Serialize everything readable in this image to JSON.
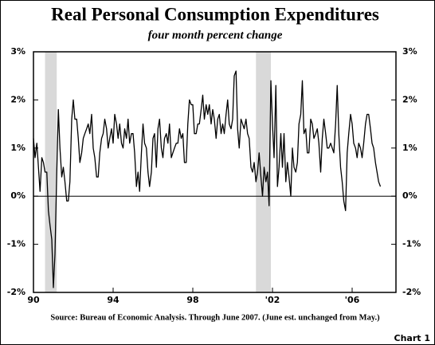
{
  "chart_data": {
    "type": "line",
    "title": "Real Personal Consumption Expenditures",
    "subtitle": "four month percent change",
    "source": "Source: Bureau of Economic Analysis. Through June 2007. (June est. unchanged from May.)",
    "chart_label": "Chart 1",
    "xlim": [
      1990,
      2008.2
    ],
    "xticks": [
      {
        "value": 1990,
        "label": "90"
      },
      {
        "value": 1994,
        "label": "94"
      },
      {
        "value": 1998,
        "label": "98"
      },
      {
        "value": 2002,
        "label": "'02"
      },
      {
        "value": 2006,
        "label": "'06"
      }
    ],
    "ylim": [
      -2,
      3
    ],
    "yticks": [
      {
        "value": -2,
        "label": "-2%"
      },
      {
        "value": -1,
        "label": "-1%"
      },
      {
        "value": 0,
        "label": "0%"
      },
      {
        "value": 1,
        "label": "1%"
      },
      {
        "value": 2,
        "label": "2%"
      },
      {
        "value": 3,
        "label": "3%"
      }
    ],
    "recessions": [
      [
        1990.58,
        1991.17
      ],
      [
        2001.17,
        2001.92
      ]
    ],
    "recession_color": "#d9d9d9",
    "series": [
      {
        "color": "#000000",
        "x": [
          1990,
          1990.08,
          1990.17,
          1990.25,
          1990.33,
          1990.42,
          1990.5,
          1990.58,
          1990.67,
          1990.75,
          1990.83,
          1990.92,
          1991,
          1991.08,
          1991.17,
          1991.25,
          1991.33,
          1991.42,
          1991.5,
          1991.58,
          1991.67,
          1991.75,
          1991.83,
          1991.92,
          1992,
          1992.08,
          1992.17,
          1992.25,
          1992.33,
          1992.42,
          1992.5,
          1992.58,
          1992.67,
          1992.75,
          1992.83,
          1992.92,
          1993,
          1993.08,
          1993.17,
          1993.25,
          1993.33,
          1993.42,
          1993.5,
          1993.58,
          1993.67,
          1993.75,
          1993.83,
          1993.92,
          1994,
          1994.08,
          1994.17,
          1994.25,
          1994.33,
          1994.42,
          1994.5,
          1994.58,
          1994.67,
          1994.75,
          1994.83,
          1994.92,
          1995,
          1995.08,
          1995.17,
          1995.25,
          1995.33,
          1995.42,
          1995.5,
          1995.58,
          1995.67,
          1995.75,
          1995.83,
          1995.92,
          1996,
          1996.08,
          1996.17,
          1996.25,
          1996.33,
          1996.42,
          1996.5,
          1996.58,
          1996.67,
          1996.75,
          1996.83,
          1996.92,
          1997,
          1997.08,
          1997.17,
          1997.25,
          1997.33,
          1997.42,
          1997.5,
          1997.58,
          1997.67,
          1997.75,
          1997.83,
          1997.92,
          1998,
          1998.08,
          1998.17,
          1998.25,
          1998.33,
          1998.42,
          1998.5,
          1998.58,
          1998.67,
          1998.75,
          1998.83,
          1998.92,
          1999,
          1999.08,
          1999.17,
          1999.25,
          1999.33,
          1999.42,
          1999.5,
          1999.58,
          1999.67,
          1999.75,
          1999.83,
          1999.92,
          2000,
          2000.08,
          2000.17,
          2000.25,
          2000.33,
          2000.42,
          2000.5,
          2000.58,
          2000.67,
          2000.75,
          2000.83,
          2000.92,
          2001,
          2001.08,
          2001.17,
          2001.25,
          2001.33,
          2001.42,
          2001.5,
          2001.58,
          2001.67,
          2001.75,
          2001.83,
          2001.92,
          2002,
          2002.08,
          2002.17,
          2002.25,
          2002.33,
          2002.42,
          2002.5,
          2002.58,
          2002.67,
          2002.75,
          2002.83,
          2002.92,
          2003,
          2003.08,
          2003.17,
          2003.25,
          2003.33,
          2003.42,
          2003.5,
          2003.58,
          2003.67,
          2003.75,
          2003.83,
          2003.92,
          2004,
          2004.08,
          2004.17,
          2004.25,
          2004.33,
          2004.42,
          2004.5,
          2004.58,
          2004.67,
          2004.75,
          2004.83,
          2004.92,
          2005,
          2005.08,
          2005.17,
          2005.25,
          2005.33,
          2005.42,
          2005.5,
          2005.58,
          2005.67,
          2005.75,
          2005.83,
          2005.92,
          2006,
          2006.08,
          2006.17,
          2006.25,
          2006.33,
          2006.42,
          2006.5,
          2006.58,
          2006.67,
          2006.75,
          2006.83,
          2006.92,
          2007,
          2007.08,
          2007.17,
          2007.25,
          2007.33,
          2007.42
        ],
        "values": [
          1.2,
          0.8,
          1.1,
          0.6,
          0.1,
          0.8,
          0.7,
          0.5,
          0.5,
          -0.3,
          -0.6,
          -0.9,
          -1.9,
          -1.2,
          0.5,
          1.8,
          1.0,
          0.4,
          0.6,
          0.3,
          -0.1,
          -0.1,
          0.3,
          1.6,
          2.0,
          1.6,
          1.6,
          1.2,
          0.7,
          0.9,
          1.2,
          1.3,
          1.4,
          1.5,
          1.3,
          1.7,
          1.0,
          0.8,
          0.4,
          0.4,
          0.9,
          1.2,
          1.3,
          1.6,
          1.4,
          1.0,
          1.2,
          1.4,
          1.1,
          1.7,
          1.5,
          1.2,
          1.5,
          1.1,
          1.0,
          1.4,
          1.2,
          1.6,
          1.1,
          1.3,
          1.3,
          0.9,
          0.2,
          0.5,
          0.1,
          0.9,
          1.5,
          1.1,
          1.0,
          0.5,
          0.2,
          0.5,
          1.2,
          1.3,
          0.6,
          1.4,
          1.6,
          1.0,
          0.8,
          1.2,
          1.3,
          1.1,
          1.5,
          0.8,
          0.9,
          1.0,
          1.1,
          1.1,
          1.4,
          1.2,
          1.3,
          0.7,
          0.7,
          1.5,
          2.0,
          1.9,
          1.9,
          1.3,
          1.3,
          1.5,
          1.5,
          1.8,
          2.1,
          1.6,
          1.9,
          1.7,
          1.9,
          1.5,
          1.8,
          1.6,
          1.2,
          1.6,
          1.7,
          1.3,
          1.5,
          1.3,
          1.7,
          2.0,
          1.5,
          1.4,
          1.6,
          2.5,
          2.6,
          1.4,
          1.0,
          1.6,
          1.5,
          1.4,
          1.6,
          1.3,
          1.2,
          0.6,
          0.5,
          0.7,
          0.3,
          0.5,
          0.9,
          0.4,
          0.0,
          0.6,
          0.3,
          0.5,
          -0.2,
          2.4,
          1.5,
          0.8,
          2.3,
          0.2,
          0.6,
          1.3,
          0.6,
          1.3,
          0.3,
          0.7,
          0.4,
          0.0,
          1.0,
          0.6,
          0.5,
          0.7,
          1.5,
          1.7,
          2.4,
          1.3,
          1.4,
          0.9,
          0.9,
          1.6,
          1.5,
          1.2,
          1.3,
          1.4,
          1.1,
          0.5,
          1.2,
          1.6,
          1.3,
          1.0,
          1.0,
          1.1,
          1.0,
          0.9,
          1.5,
          2.3,
          1.3,
          0.6,
          0.3,
          -0.1,
          -0.3,
          0.9,
          1.3,
          1.7,
          1.5,
          1.1,
          1.0,
          0.8,
          1.1,
          1.0,
          0.8,
          1.1,
          1.5,
          1.7,
          1.7,
          1.4,
          1.1,
          1.0,
          0.7,
          0.5,
          0.3,
          0.2
        ]
      }
    ]
  }
}
